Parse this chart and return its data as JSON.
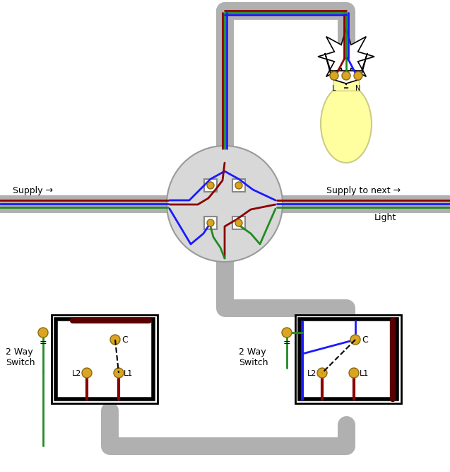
{
  "bg_color": "#ffffff",
  "conduit_color": "#b0b0b0",
  "conduit_lw": 18,
  "wire_brown": "#8B0000",
  "wire_blue": "#1a1aff",
  "wire_green": "#228B22",
  "wire_black": "#000000",
  "screw_color": "#DAA520",
  "screw_edge": "#8B6914",
  "junction_color": "#d8d8d8",
  "junction_edge": "#999999",
  "fixture_color": "#ffffff",
  "bulb_color": "#FFFFA0",
  "supply_label": "Supply →",
  "supply_next_label": "Supply to next →",
  "light_label": "Light",
  "sw1_label": "2 Way\nSwitch",
  "sw2_label": "2 Way\nSwitch",
  "c_label": "C",
  "l1_label": "L1",
  "l2_label": "L2",
  "l_label": "L",
  "n_label": "N"
}
